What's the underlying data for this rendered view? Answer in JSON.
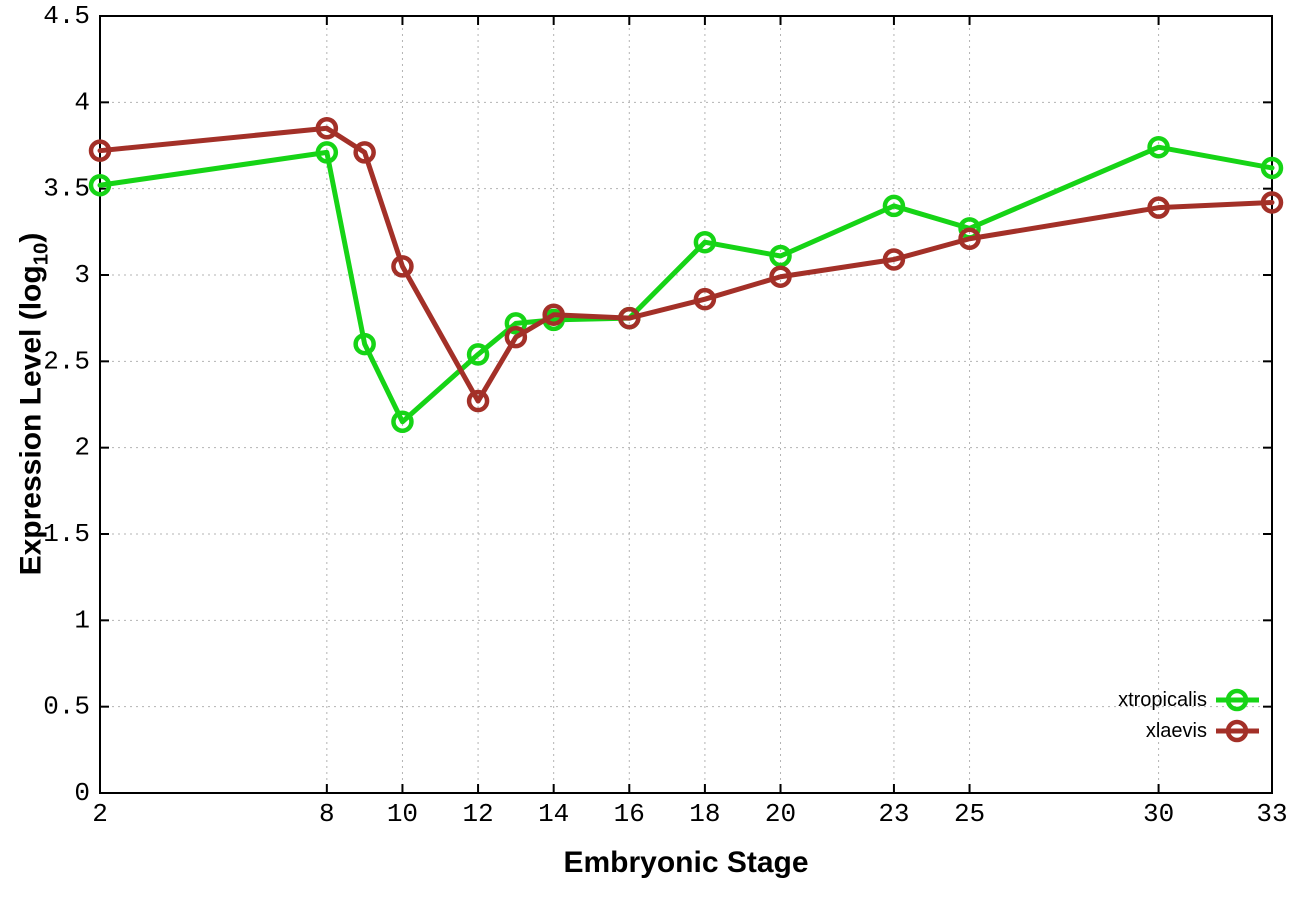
{
  "figure": {
    "background": "#ffffff",
    "xlabel": "Embryonic Stage",
    "ylabel_main": "Expression Level (log",
    "ylabel_sub": "10",
    "ylabel_end": ")"
  },
  "style": {
    "grid_color": "#b3b3b3",
    "axis_color": "#000000",
    "text_color": "#000000"
  },
  "chart_data": {
    "type": "line",
    "title": "",
    "xlabel": "Embryonic Stage",
    "ylabel": "Expression Level (log10)",
    "x": [
      2,
      8,
      9,
      10,
      12,
      13,
      14,
      16,
      18,
      20,
      23,
      25,
      30,
      33
    ],
    "x_tick_labels": [
      2,
      8,
      10,
      12,
      14,
      16,
      18,
      20,
      23,
      25,
      30,
      33
    ],
    "y_ticks": [
      0,
      0.5,
      1,
      1.5,
      2,
      2.5,
      3,
      3.5,
      4,
      4.5
    ],
    "xlim": [
      2,
      33
    ],
    "ylim": [
      0,
      4.5
    ],
    "grid": true,
    "legend_position": "inside-bottom-right",
    "marker": "open-circle",
    "series": [
      {
        "name": "xtropicalis",
        "color": "#16d416",
        "values": [
          3.52,
          3.71,
          2.6,
          2.15,
          2.54,
          2.72,
          2.74,
          2.75,
          3.19,
          3.11,
          3.4,
          3.27,
          3.74,
          3.62
        ]
      },
      {
        "name": "xlaevis",
        "color": "#a33028",
        "values": [
          3.72,
          3.85,
          3.71,
          3.05,
          2.27,
          2.64,
          2.77,
          2.75,
          2.86,
          2.99,
          3.09,
          3.21,
          3.39,
          3.42
        ]
      }
    ]
  }
}
